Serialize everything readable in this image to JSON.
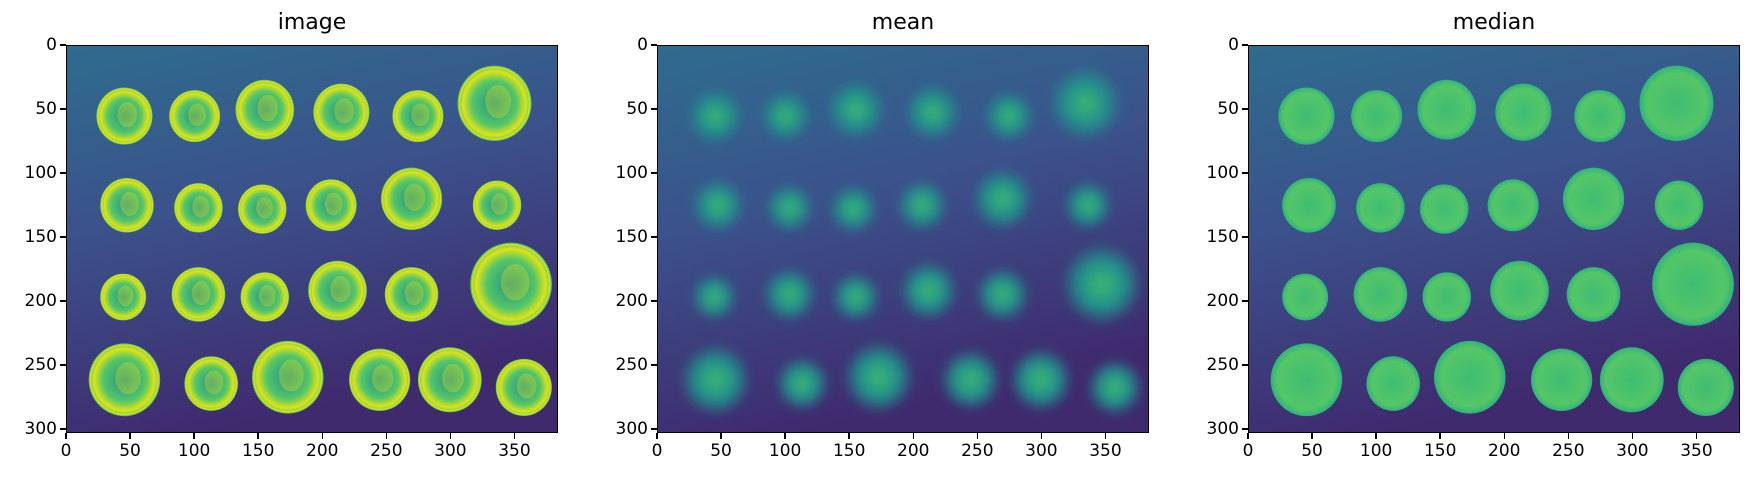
{
  "panels": [
    {
      "id": "image",
      "title": "image",
      "style": "sharp"
    },
    {
      "id": "mean",
      "title": "mean",
      "style": "blur"
    },
    {
      "id": "median",
      "title": "median",
      "style": "smooth"
    }
  ],
  "axes": {
    "x_ticks": [
      "0",
      "50",
      "100",
      "150",
      "200",
      "250",
      "300",
      "350"
    ],
    "y_ticks": [
      "0",
      "50",
      "100",
      "150",
      "200",
      "250",
      "300"
    ],
    "x_tick_values": [
      0,
      50,
      100,
      150,
      200,
      250,
      300,
      350
    ],
    "y_tick_values": [
      0,
      50,
      100,
      150,
      200,
      250,
      300
    ],
    "xlim": [
      0,
      384
    ],
    "ylim": [
      0,
      303
    ]
  },
  "colors": {
    "background_dark": "#3f2a6e",
    "background_mid": "#2e6c8e",
    "coin_bright": "#55c667",
    "coin_highlight": "#dce319",
    "coin_mid": "#21918c"
  },
  "coins": [
    {
      "row": 1,
      "x": 45,
      "y": 55,
      "r": 22
    },
    {
      "row": 1,
      "x": 100,
      "y": 55,
      "r": 20
    },
    {
      "row": 1,
      "x": 155,
      "y": 50,
      "r": 23
    },
    {
      "row": 1,
      "x": 215,
      "y": 52,
      "r": 22
    },
    {
      "row": 1,
      "x": 275,
      "y": 55,
      "r": 20
    },
    {
      "row": 1,
      "x": 335,
      "y": 45,
      "r": 29
    },
    {
      "row": 2,
      "x": 47,
      "y": 125,
      "r": 21
    },
    {
      "row": 2,
      "x": 103,
      "y": 127,
      "r": 19
    },
    {
      "row": 2,
      "x": 153,
      "y": 128,
      "r": 19
    },
    {
      "row": 2,
      "x": 207,
      "y": 125,
      "r": 20
    },
    {
      "row": 2,
      "x": 270,
      "y": 120,
      "r": 24
    },
    {
      "row": 2,
      "x": 337,
      "y": 125,
      "r": 19
    },
    {
      "row": 3,
      "x": 44,
      "y": 197,
      "r": 18
    },
    {
      "row": 3,
      "x": 103,
      "y": 195,
      "r": 21
    },
    {
      "row": 3,
      "x": 155,
      "y": 197,
      "r": 19
    },
    {
      "row": 3,
      "x": 212,
      "y": 192,
      "r": 23
    },
    {
      "row": 3,
      "x": 270,
      "y": 195,
      "r": 21
    },
    {
      "row": 3,
      "x": 348,
      "y": 187,
      "r": 32
    },
    {
      "row": 4,
      "x": 45,
      "y": 262,
      "r": 28
    },
    {
      "row": 4,
      "x": 113,
      "y": 265,
      "r": 21
    },
    {
      "row": 4,
      "x": 173,
      "y": 260,
      "r": 28
    },
    {
      "row": 4,
      "x": 245,
      "y": 262,
      "r": 24
    },
    {
      "row": 4,
      "x": 300,
      "y": 262,
      "r": 25
    },
    {
      "row": 4,
      "x": 358,
      "y": 268,
      "r": 22
    }
  ]
}
